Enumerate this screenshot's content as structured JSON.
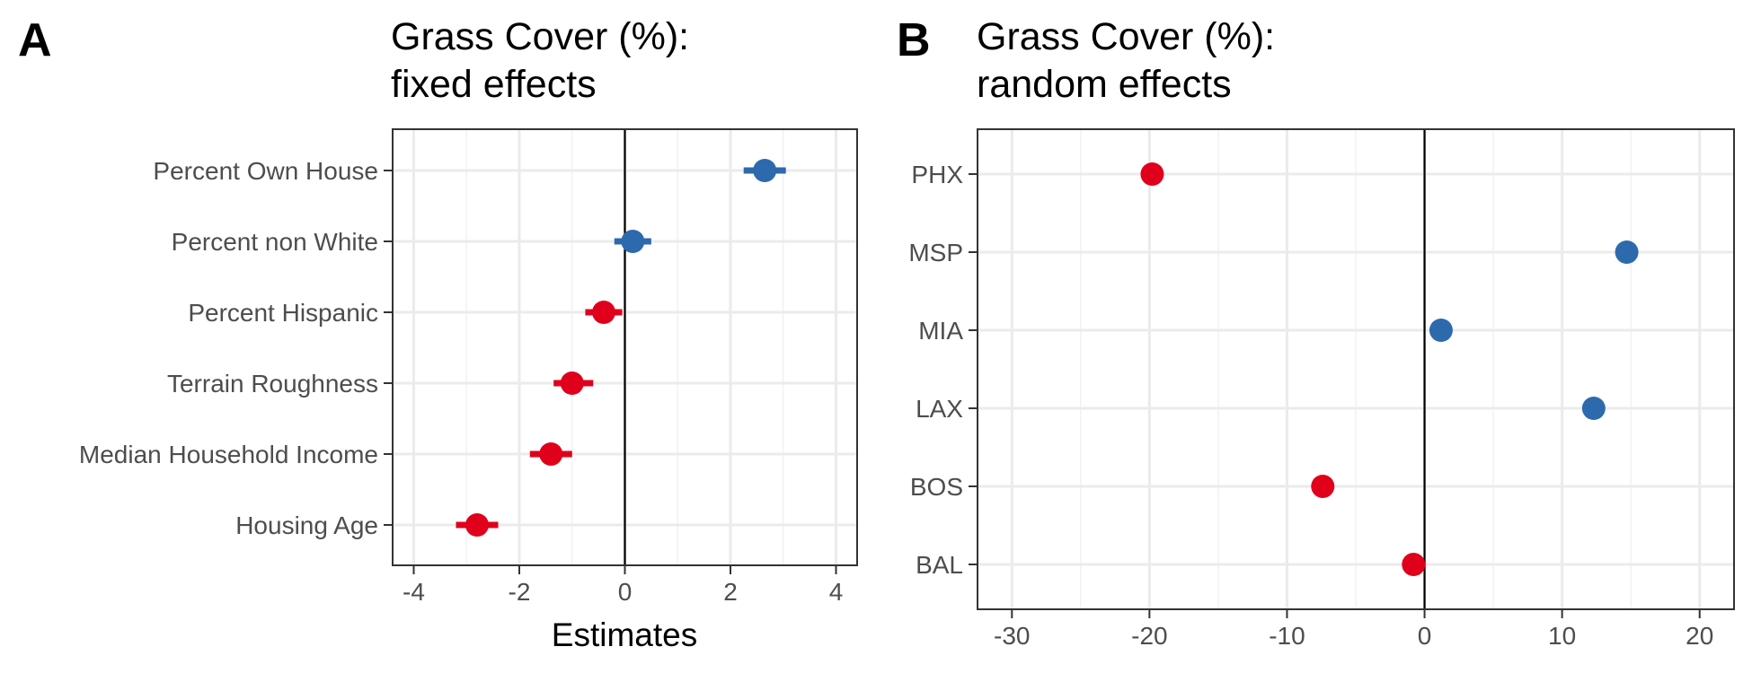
{
  "chart_data": [
    {
      "type": "scatter",
      "panel_label": "A",
      "title": "Grass Cover (%):",
      "subtitle": "fixed effects",
      "xlabel": "Estimates",
      "ylabel": "",
      "xlim": [
        -4.4,
        4.4
      ],
      "x_ticks": [
        -4,
        -2,
        0,
        2,
        4
      ],
      "x_tick_labels": [
        "-4",
        "-2",
        "0",
        "2",
        "4"
      ],
      "reference_line": 0,
      "grid": true,
      "colors": {
        "positive": "#2d6aad",
        "negative": "#e0001b"
      },
      "categories": [
        "Percent Own House",
        "Percent non White",
        "Percent Hispanic",
        "Terrain Roughness",
        "Median Household Income",
        "Housing Age"
      ],
      "series": [
        {
          "estimate": [
            2.65,
            0.15,
            -0.4,
            -1.0,
            -1.4,
            -2.8
          ],
          "ci_low": [
            2.25,
            -0.2,
            -0.75,
            -1.35,
            -1.8,
            -3.2
          ],
          "ci_high": [
            3.05,
            0.5,
            -0.05,
            -0.6,
            -1.0,
            -2.4
          ]
        }
      ]
    },
    {
      "type": "scatter",
      "panel_label": "B",
      "title": "Grass Cover (%):",
      "subtitle": "random effects",
      "xlabel": "",
      "ylabel": "",
      "xlim": [
        -32.5,
        22.5
      ],
      "x_ticks": [
        -30,
        -20,
        -10,
        0,
        10,
        20
      ],
      "x_tick_labels": [
        "-30",
        "-20",
        "-10",
        "0",
        "10",
        "20"
      ],
      "reference_line": 0,
      "grid": true,
      "colors": {
        "positive": "#2d6aad",
        "negative": "#e0001b"
      },
      "categories": [
        "PHX",
        "MSP",
        "MIA",
        "LAX",
        "BOS",
        "BAL"
      ],
      "series": [
        {
          "estimate": [
            -19.8,
            14.7,
            1.2,
            12.3,
            -7.4,
            -0.8
          ]
        }
      ]
    }
  ]
}
